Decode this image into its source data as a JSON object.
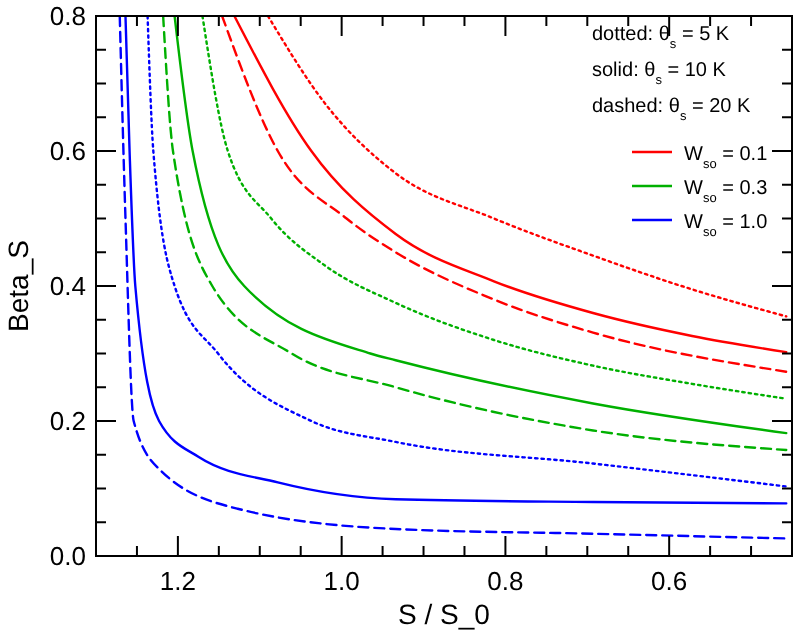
{
  "chart_data": {
    "type": "line",
    "xlabel": "S / S_0",
    "ylabel": "Beta_S",
    "xlim": [
      1.3,
      0.45
    ],
    "ylim": [
      0,
      0.8
    ],
    "xticks": [
      {
        "value": 1.25,
        "label": null
      },
      1.2,
      {
        "value": 1.15,
        "label": null
      },
      {
        "value": 1.1,
        "label": null
      },
      {
        "value": 1.05,
        "label": null
      },
      {
        "value": 1,
        "label": "1.0"
      },
      {
        "value": 0.95,
        "label": null
      },
      {
        "value": 0.9,
        "label": null
      },
      {
        "value": 0.85,
        "label": null
      },
      0.8,
      {
        "value": 0.75,
        "label": null
      },
      {
        "value": 0.7,
        "label": null
      },
      {
        "value": 0.65,
        "label": null
      },
      0.6,
      {
        "value": 0.55,
        "label": null
      },
      {
        "value": 0.5,
        "label": null
      }
    ],
    "yticks": [
      {
        "value": 0,
        "label": "0.0"
      },
      {
        "value": 0.05,
        "label": null
      },
      {
        "value": 0.1,
        "label": null
      },
      {
        "value": 0.15,
        "label": null
      },
      0.2,
      {
        "value": 0.25,
        "label": null
      },
      {
        "value": 0.3,
        "label": null
      },
      {
        "value": 0.35,
        "label": null
      },
      0.4,
      {
        "value": 0.45,
        "label": null
      },
      {
        "value": 0.5,
        "label": null
      },
      {
        "value": 0.55,
        "label": null
      },
      0.6,
      {
        "value": 0.65,
        "label": null
      },
      {
        "value": 0.7,
        "label": null
      },
      {
        "value": 0.75,
        "label": null
      },
      0.8
    ],
    "grid": false,
    "legend": "top right",
    "annotations": [
      "dotted:  θ$_{s}$ = 5 K",
      "solid:     θ$_{s}$ = 10 K",
      "dashed: θ$_{s}$ = 20 K"
    ],
    "series": [
      {
        "name": "W$_{so}$ = 0.1",
        "color": "#ff0000",
        "line_style": "solid",
        "x": [
          1.131,
          1.037,
          0.934,
          0.814,
          0.693,
          0.572,
          0.457
        ],
        "values": [
          0.8,
          0.6,
          0.477,
          0.407,
          0.36,
          0.326,
          0.302
        ]
      },
      {
        "name": "W$_{so}$ = 0.3",
        "color": "#00b000",
        "line_style": "solid",
        "x": [
          1.204,
          1.182,
          1.119,
          0.965,
          0.934,
          0.693,
          0.457
        ],
        "values": [
          0.8,
          0.6,
          0.4,
          0.3,
          0.29,
          0.226,
          0.182
        ]
      },
      {
        "name": "W$_{so}$ = 1.0",
        "color": "#0000ff",
        "line_style": "solid",
        "x": [
          1.264,
          1.259,
          1.252,
          1.223,
          1.175,
          1.078,
          0.934,
          0.693,
          0.457
        ],
        "values": [
          0.8,
          0.6,
          0.4,
          0.2,
          0.147,
          0.109,
          0.084,
          0.08,
          0.078
        ]
      },
      {
        "color": "#ff0000",
        "line_style": "dotted",
        "x": [
          1.09,
          1.02,
          0.934,
          0.814,
          0.693,
          0.572,
          0.457
        ],
        "values": [
          0.8,
          0.67,
          0.567,
          0.5,
          0.445,
          0.395,
          0.355
        ]
      },
      {
        "color": "#ff0000",
        "line_style": "dashed",
        "x": [
          1.146,
          1.078,
          0.994,
          0.934,
          0.814,
          0.693,
          0.457
        ],
        "values": [
          0.8,
          0.6,
          0.5,
          0.45,
          0.38,
          0.331,
          0.273
        ]
      },
      {
        "color": "#00b000",
        "line_style": "dotted",
        "x": [
          1.17,
          1.139,
          1.086,
          1.02,
          0.934,
          0.814,
          0.693,
          0.572,
          0.457
        ],
        "values": [
          0.8,
          0.6,
          0.5,
          0.43,
          0.375,
          0.32,
          0.282,
          0.255,
          0.233
        ]
      },
      {
        "color": "#00b000",
        "line_style": "dashed",
        "x": [
          1.218,
          1.206,
          1.158,
          1.061,
          0.934,
          0.693,
          0.457
        ],
        "values": [
          0.8,
          0.6,
          0.4,
          0.3,
          0.25,
          0.186,
          0.157
        ]
      },
      {
        "color": "#0000ff",
        "line_style": "dotted",
        "x": [
          1.237,
          1.23,
          1.204,
          1.151,
          1.037,
          0.934,
          0.693,
          0.457
        ],
        "values": [
          0.8,
          0.6,
          0.4,
          0.3,
          0.2,
          0.169,
          0.137,
          0.103
        ]
      },
      {
        "color": "#0000ff",
        "line_style": "dashed",
        "x": [
          1.271,
          1.264,
          1.254,
          1.223,
          1.127,
          0.934,
          0.693,
          0.457
        ],
        "values": [
          0.8,
          0.5,
          0.2,
          0.129,
          0.07,
          0.04,
          0.033,
          0.026
        ]
      }
    ]
  }
}
